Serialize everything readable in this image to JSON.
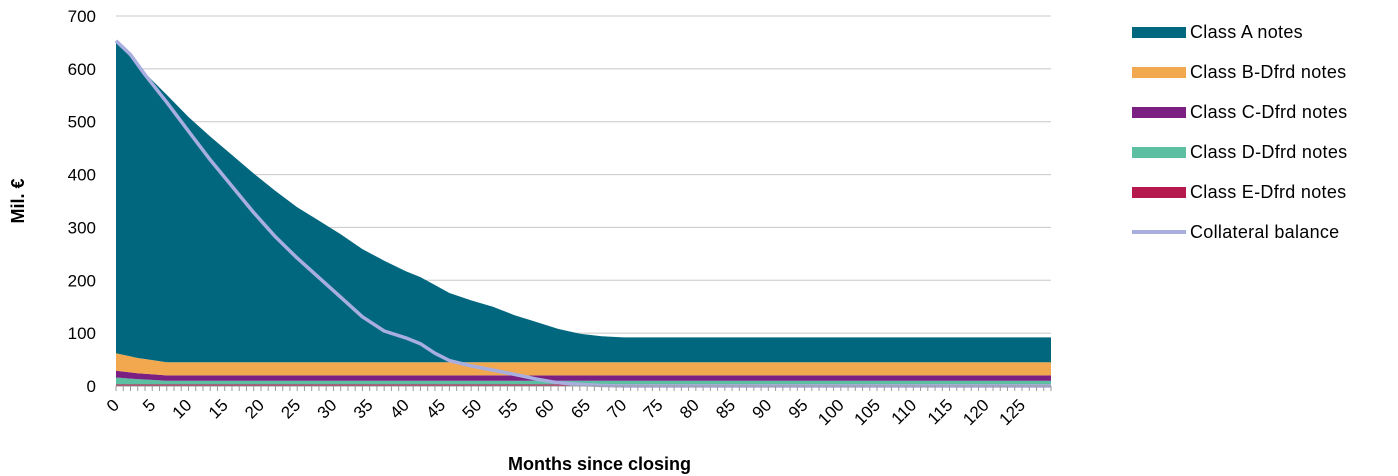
{
  "chart_data": {
    "type": "area",
    "ylabel": "Mil. €",
    "xlabel": "Months since closing",
    "ylim": [
      0,
      700
    ],
    "yticks": [
      0,
      100,
      200,
      300,
      400,
      500,
      600,
      700
    ],
    "xlim": [
      0,
      129
    ],
    "xticks": [
      0,
      5,
      10,
      15,
      20,
      25,
      30,
      35,
      40,
      45,
      50,
      55,
      60,
      65,
      70,
      75,
      80,
      85,
      90,
      95,
      100,
      105,
      110,
      115,
      120,
      125
    ],
    "grid": true,
    "legend_position": "right",
    "stacked": true,
    "series": [
      {
        "name": "Class E-Dfrd notes",
        "color": "#b5194d",
        "kind": "area",
        "x": [
          0,
          3,
          7,
          129
        ],
        "values": [
          3,
          3,
          3,
          3
        ]
      },
      {
        "name": "Class D-Dfrd notes",
        "color": "#5cbfa1",
        "kind": "area",
        "x": [
          0,
          3,
          7,
          129
        ],
        "values": [
          13,
          10,
          7,
          7
        ]
      },
      {
        "name": "Class C-Dfrd notes",
        "color": "#7b2082",
        "kind": "area",
        "x": [
          0,
          3,
          7,
          129
        ],
        "values": [
          13,
          11,
          10,
          10
        ]
      },
      {
        "name": "Class B-Dfrd notes",
        "color": "#f2a84e",
        "kind": "area",
        "x": [
          0,
          3,
          7,
          129
        ],
        "values": [
          33,
          29,
          25,
          25
        ]
      },
      {
        "name": "Class A notes",
        "color": "#00677f",
        "kind": "area",
        "x": [
          0,
          2,
          4,
          7,
          10,
          13,
          16,
          19,
          22,
          25,
          28,
          31,
          34,
          37,
          40,
          42,
          44,
          46,
          49,
          52,
          55,
          58,
          61,
          64,
          67,
          70,
          129
        ],
        "values": [
          588,
          568,
          541,
          506,
          464,
          427,
          392,
          357,
          324,
          293,
          268,
          242,
          214,
          192,
          172,
          161,
          146,
          131,
          117,
          105,
          89,
          76,
          63,
          54,
          49,
          47,
          47
        ]
      },
      {
        "name": "Collateral balance",
        "color": "#a9aee0",
        "kind": "line",
        "x": [
          0,
          2,
          4,
          7,
          10,
          13,
          16,
          19,
          22,
          25,
          28,
          31,
          34,
          37,
          40,
          42,
          44,
          46,
          49,
          52,
          55,
          58,
          61,
          64,
          67,
          70,
          75,
          129
        ],
        "values": [
          653,
          627,
          589,
          537,
          482,
          428,
          378,
          328,
          282,
          242,
          205,
          168,
          131,
          104,
          91,
          80,
          62,
          48,
          38,
          30,
          22,
          13,
          6,
          3,
          1,
          0,
          0,
          0
        ]
      }
    ]
  },
  "legend": {
    "items": [
      {
        "label": "Class A notes",
        "color": "#00677f",
        "kind": "area"
      },
      {
        "label": "Class B-Dfrd notes",
        "color": "#f2a84e",
        "kind": "area"
      },
      {
        "label": "Class C-Dfrd notes",
        "color": "#7b2082",
        "kind": "area"
      },
      {
        "label": "Class D-Dfrd notes",
        "color": "#5cbfa1",
        "kind": "area"
      },
      {
        "label": "Class E-Dfrd notes",
        "color": "#b5194d",
        "kind": "area"
      },
      {
        "label": "Collateral balance",
        "color": "#a9aee0",
        "kind": "line"
      }
    ]
  }
}
